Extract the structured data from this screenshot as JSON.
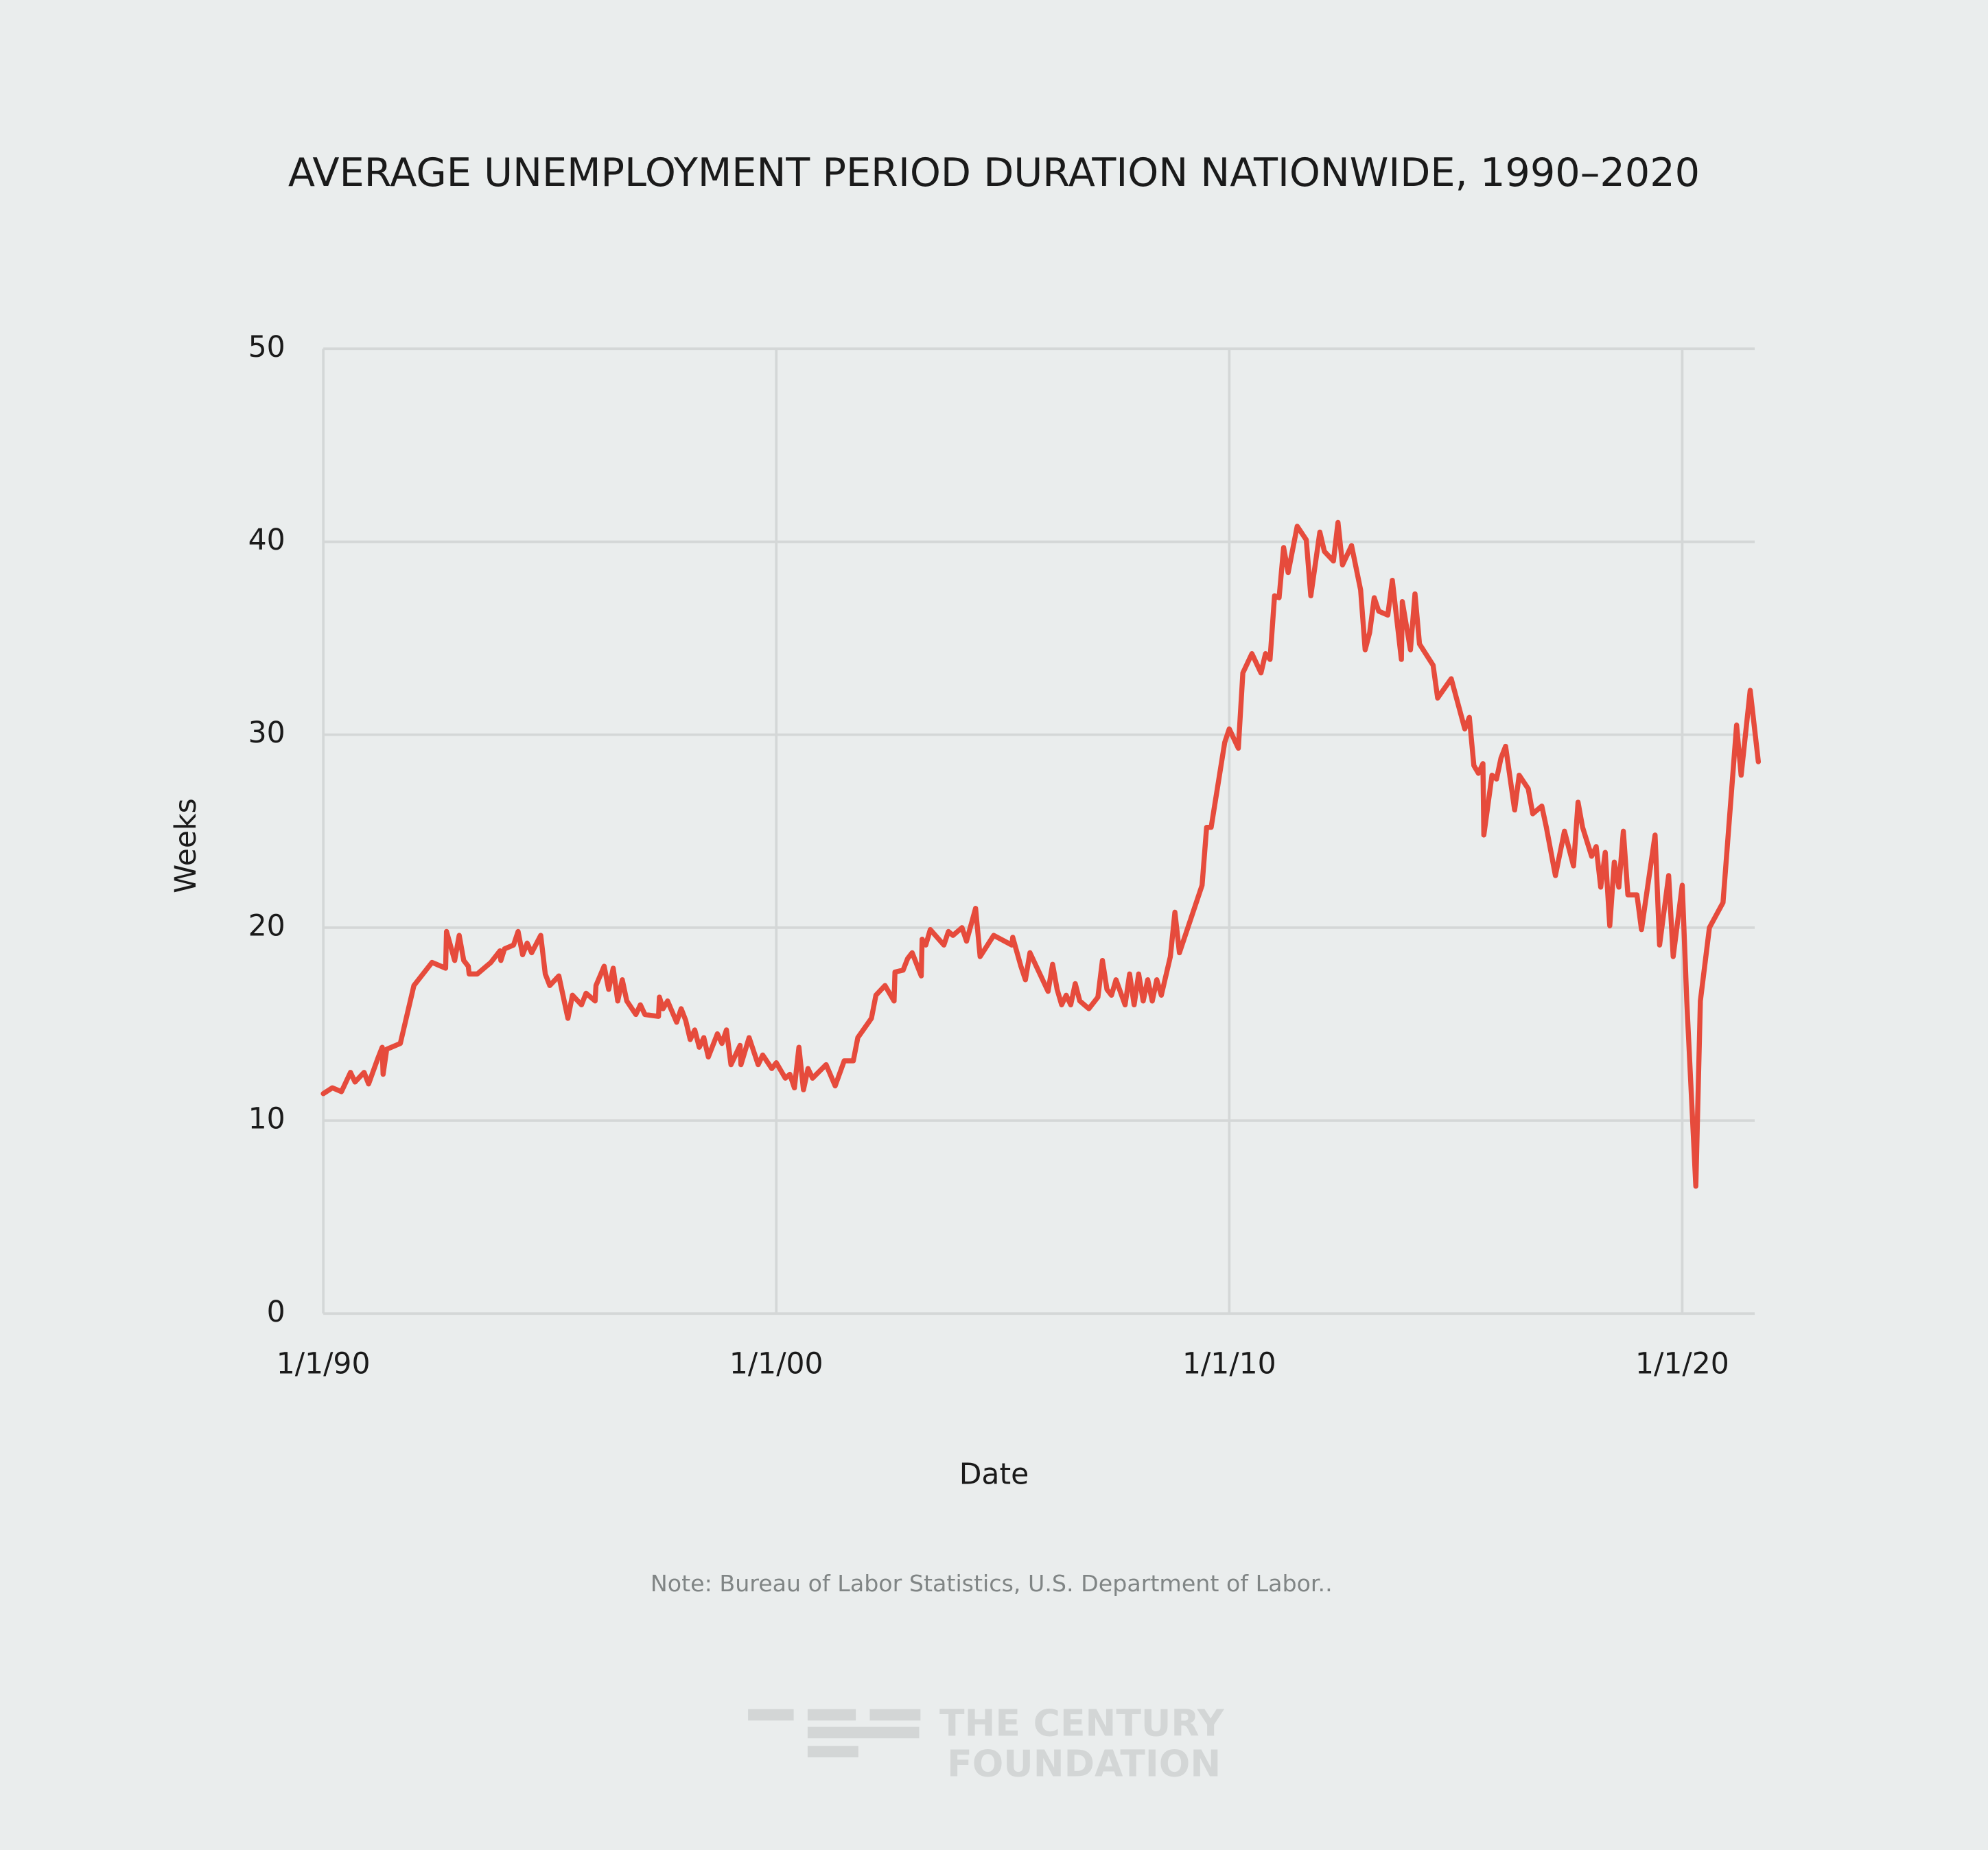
{
  "chart_data": {
    "type": "line",
    "title": "AVERAGE UNEMPLOYMENT PERIOD DURATION NATIONWIDE, 1990–2020",
    "x_label": "Date",
    "y_label": "Weeks",
    "note": "Note:  Bureau of Labor Statistics, U.S. Department of Labor..",
    "x": [
      1990.0,
      1990.2,
      1990.4,
      1990.6,
      1990.7,
      1990.9,
      1991.0,
      1991.2,
      1991.3,
      1991.32,
      1991.4,
      1991.7,
      1992.0,
      1992.4,
      1992.7,
      1992.72,
      1992.9,
      1993.0,
      1993.1,
      1993.2,
      1993.22,
      1993.4,
      1993.6,
      1993.7,
      1993.9,
      1993.92,
      1994.0,
      1994.2,
      1994.3,
      1994.4,
      1994.5,
      1994.6,
      1994.8,
      1994.9,
      1995.0,
      1995.2,
      1995.4,
      1995.5,
      1995.7,
      1995.8,
      1996.0,
      1996.02,
      1996.2,
      1996.3,
      1996.4,
      1996.5,
      1996.6,
      1996.7,
      1996.9,
      1997.0,
      1997.1,
      1997.4,
      1997.42,
      1997.5,
      1997.6,
      1997.8,
      1997.9,
      1998.0,
      1998.1,
      1998.2,
      1998.3,
      1998.4,
      1998.5,
      1998.7,
      1998.8,
      1998.9,
      1999.0,
      1999.2,
      1999.22,
      1999.4,
      1999.6,
      1999.7,
      1999.9,
      2000.0,
      2000.2,
      2000.3,
      2000.4,
      2000.5,
      2000.6,
      2000.7,
      2000.8,
      2001.1,
      2001.3,
      2001.5,
      2001.7,
      2001.8,
      2002.1,
      2002.2,
      2002.4,
      2002.6,
      2002.62,
      2002.8,
      2002.9,
      2003.0,
      2003.2,
      2003.22,
      2003.3,
      2003.4,
      2003.7,
      2003.8,
      2003.9,
      2004.1,
      2004.2,
      2004.4,
      2004.5,
      2004.8,
      2005.2,
      2005.22,
      2005.4,
      2005.5,
      2005.6,
      2006.0,
      2006.1,
      2006.2,
      2006.3,
      2006.4,
      2006.5,
      2006.6,
      2006.7,
      2006.9,
      2007.1,
      2007.2,
      2007.3,
      2007.4,
      2007.5,
      2007.7,
      2007.8,
      2007.9,
      2008.0,
      2008.1,
      2008.2,
      2008.3,
      2008.4,
      2008.5,
      2008.7,
      2008.8,
      2008.9,
      2009.4,
      2009.5,
      2009.6,
      2009.9,
      2010.0,
      2010.2,
      2010.3,
      2010.5,
      2010.7,
      2010.8,
      2010.9,
      2011.0,
      2011.1,
      2011.2,
      2011.3,
      2011.5,
      2011.7,
      2011.8,
      2012.0,
      2012.1,
      2012.3,
      2012.4,
      2012.5,
      2012.7,
      2012.9,
      2013.0,
      2013.1,
      2013.2,
      2013.3,
      2013.5,
      2013.6,
      2013.8,
      2013.82,
      2014.0,
      2014.1,
      2014.2,
      2014.5,
      2014.6,
      2014.9,
      2015.2,
      2015.3,
      2015.4,
      2015.5,
      2015.6,
      2015.62,
      2015.8,
      2015.9,
      2016.0,
      2016.1,
      2016.3,
      2016.4,
      2016.6,
      2016.7,
      2016.9,
      2017.0,
      2017.2,
      2017.4,
      2017.6,
      2017.7,
      2017.8,
      2018.0,
      2018.1,
      2018.2,
      2018.3,
      2018.4,
      2018.5,
      2018.6,
      2018.7,
      2018.8,
      2019.0,
      2019.1,
      2019.4,
      2019.5,
      2019.7,
      2019.8,
      2020.0,
      2020.1,
      2020.3,
      2020.4,
      2020.6,
      2020.9,
      2021.2,
      2021.3,
      2021.5,
      2021.68
    ],
    "series": [
      {
        "name": "Weeks",
        "color": "#e64b3c",
        "values": [
          11.4,
          11.7,
          11.5,
          12.5,
          12.0,
          12.5,
          11.9,
          13.2,
          13.8,
          12.4,
          13.7,
          14.0,
          17.0,
          18.2,
          17.9,
          19.8,
          18.3,
          19.6,
          18.3,
          18.0,
          17.6,
          17.6,
          18.0,
          18.2,
          18.8,
          18.3,
          18.9,
          19.1,
          19.8,
          18.6,
          19.2,
          18.7,
          19.6,
          17.6,
          17.0,
          17.5,
          15.3,
          16.5,
          16.0,
          16.6,
          16.2,
          17.0,
          18.0,
          16.8,
          17.9,
          16.2,
          17.3,
          16.2,
          15.5,
          16.0,
          15.5,
          15.4,
          16.4,
          15.8,
          16.2,
          15.1,
          15.8,
          15.2,
          14.2,
          14.7,
          13.8,
          14.3,
          13.3,
          14.5,
          14.0,
          14.7,
          12.9,
          13.9,
          12.9,
          14.3,
          12.9,
          13.4,
          12.7,
          13.0,
          12.2,
          12.4,
          11.7,
          13.8,
          11.6,
          12.7,
          12.2,
          12.9,
          11.8,
          13.1,
          13.1,
          14.3,
          15.3,
          16.5,
          17.0,
          16.2,
          17.7,
          17.8,
          18.4,
          18.7,
          17.5,
          19.4,
          19.1,
          19.9,
          19.1,
          19.8,
          19.6,
          20.0,
          19.3,
          21.0,
          18.5,
          19.6,
          19.1,
          19.5,
          18.0,
          17.3,
          18.7,
          16.7,
          18.1,
          16.8,
          16.0,
          16.5,
          16.0,
          17.1,
          16.2,
          15.8,
          16.4,
          18.3,
          16.8,
          16.5,
          17.3,
          16.0,
          17.6,
          16.0,
          17.6,
          16.2,
          17.3,
          16.2,
          17.3,
          16.5,
          18.5,
          20.8,
          18.7,
          22.2,
          25.2,
          25.2,
          29.6,
          30.3,
          29.3,
          33.2,
          34.2,
          33.2,
          34.2,
          33.9,
          37.2,
          37.1,
          39.7,
          38.4,
          40.8,
          40.1,
          37.2,
          40.5,
          39.5,
          39.0,
          41.0,
          38.8,
          39.8,
          37.5,
          34.4,
          35.3,
          37.1,
          36.4,
          36.2,
          38.0,
          33.9,
          36.9,
          34.4,
          37.3,
          34.7,
          33.6,
          31.9,
          32.9,
          30.3,
          30.9,
          28.4,
          28.0,
          28.5,
          24.8,
          27.9,
          27.7,
          28.8,
          29.4,
          26.1,
          27.9,
          27.2,
          25.9,
          26.3,
          25.2,
          22.7,
          25.0,
          23.2,
          26.5,
          25.2,
          23.7,
          24.2,
          22.1,
          23.9,
          20.1,
          23.4,
          22.1,
          25.0,
          21.7,
          21.7,
          19.9,
          24.8,
          19.1,
          22.7,
          18.5,
          22.2,
          16.2,
          6.6,
          16.2,
          20.0,
          21.3,
          30.5,
          27.9,
          32.3,
          28.6
        ]
      }
    ],
    "xlim": [
      1990,
      2021.6
    ],
    "xticks": [
      {
        "value": 1990,
        "label": "1/1/90"
      },
      {
        "value": 2000,
        "label": "1/1/00"
      },
      {
        "value": 2010,
        "label": "1/1/10"
      },
      {
        "value": 2020,
        "label": "1/1/20"
      }
    ],
    "ylim": [
      0,
      50
    ],
    "yticks": [
      0,
      10,
      20,
      30,
      40,
      50
    ],
    "grid": true
  },
  "branding": {
    "line1": "THE CENTURY",
    "line2": "FOUNDATION"
  }
}
